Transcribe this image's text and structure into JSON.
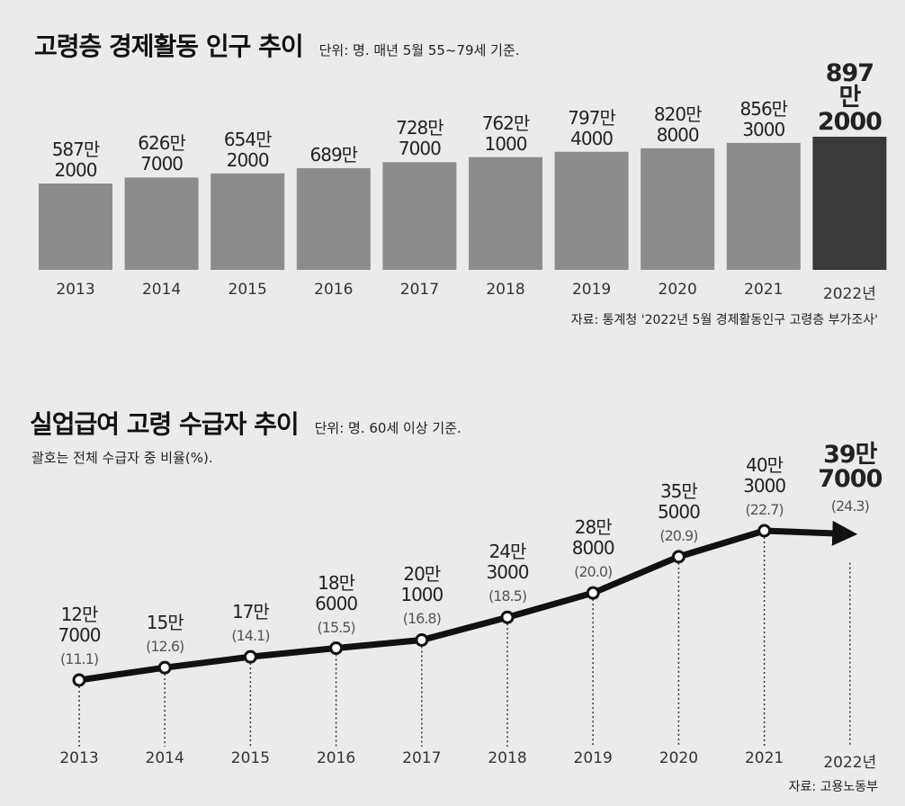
{
  "chart_data": [
    {
      "type": "bar",
      "title": "고령층 경제활동 인구 추이",
      "subtitle": "단위: 명. 매년 5월 55~79세 기준.",
      "categories": [
        "2013",
        "2014",
        "2015",
        "2016",
        "2017",
        "2018",
        "2019",
        "2020",
        "2021",
        "2022년"
      ],
      "values": [
        5872000,
        6267000,
        6542000,
        6890000,
        7287000,
        7621000,
        7974000,
        8208000,
        8563000,
        8972000
      ],
      "value_labels": [
        "587만\n2000",
        "626만\n7000",
        "654만\n2000",
        "689만",
        "728만\n7000",
        "762만\n1000",
        "797만\n4000",
        "820만\n8000",
        "856만\n3000",
        "897만\n2000"
      ],
      "colors": [
        "#8c8c8c",
        "#8c8c8c",
        "#8c8c8c",
        "#8c8c8c",
        "#8c8c8c",
        "#8c8c8c",
        "#8c8c8c",
        "#8c8c8c",
        "#8c8c8c",
        "#3a3a3a"
      ],
      "source": "자료: 통계청 '2022년 5월 경제활동인구 고령층 부가조사'"
    },
    {
      "type": "line",
      "title": "실업급여 고령 수급자 추이",
      "subtitle": "단위: 명. 60세 이상 기준.",
      "note": "괄호는 전체 수급자 중 비율(%).",
      "categories": [
        "2013",
        "2014",
        "2015",
        "2016",
        "2017",
        "2018",
        "2019",
        "2020",
        "2021",
        "2022년"
      ],
      "values": [
        127000,
        150000,
        170000,
        186000,
        201000,
        243000,
        288000,
        355000,
        403000,
        397000
      ],
      "value_labels": [
        "12만\n7000",
        "15만",
        "17만",
        "18만\n6000",
        "20만\n1000",
        "24만\n3000",
        "28만\n8000",
        "35만\n5000",
        "40만\n3000",
        "39만\n7000"
      ],
      "share_labels": [
        "(11.1)",
        "(12.6)",
        "(14.1)",
        "(15.5)",
        "(16.8)",
        "(18.5)",
        "(20.0)",
        "(20.9)",
        "(22.7)",
        "(24.3)"
      ],
      "color": "#111111",
      "source": "자료: 고용노동부"
    }
  ]
}
